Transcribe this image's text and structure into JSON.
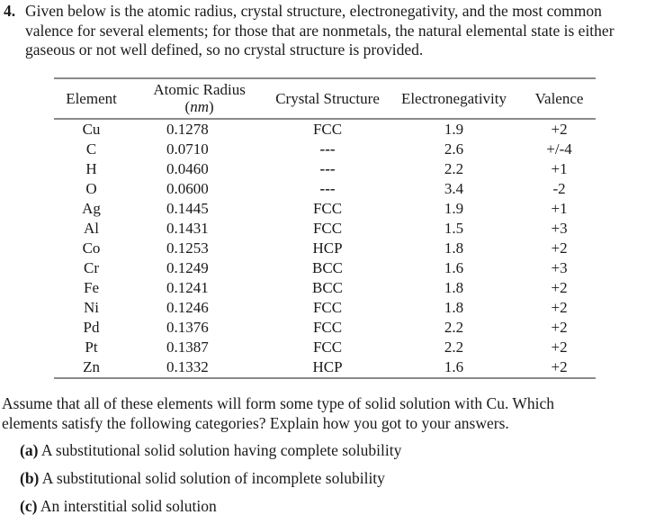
{
  "problem": {
    "number": "4.",
    "intro_lines": [
      "Given below is the atomic radius, crystal structure, electronegativity, and the most common",
      "valence for several elements; for those that are nonmetals, the natural elemental state is either",
      "gaseous or not well defined, so no crystal structure is provided."
    ]
  },
  "table": {
    "headers": {
      "element": "Element",
      "radius_line1": "Atomic Radius",
      "radius_unit": "nm",
      "crystal": "Crystal Structure",
      "electroneg": "Electronegativity",
      "valence": "Valence"
    },
    "rows": [
      {
        "element": "Cu",
        "radius": "0.1278",
        "crystal": "FCC",
        "electroneg": "1.9",
        "valence": "+2"
      },
      {
        "element": "C",
        "radius": "0.0710",
        "crystal": "---",
        "electroneg": "2.6",
        "valence": "+/-4"
      },
      {
        "element": "H",
        "radius": "0.0460",
        "crystal": "---",
        "electroneg": "2.2",
        "valence": "+1"
      },
      {
        "element": "O",
        "radius": "0.0600",
        "crystal": "---",
        "electroneg": "3.4",
        "valence": "-2"
      },
      {
        "element": "Ag",
        "radius": "0.1445",
        "crystal": "FCC",
        "electroneg": "1.9",
        "valence": "+1"
      },
      {
        "element": "Al",
        "radius": "0.1431",
        "crystal": "FCC",
        "electroneg": "1.5",
        "valence": "+3"
      },
      {
        "element": "Co",
        "radius": "0.1253",
        "crystal": "HCP",
        "electroneg": "1.8",
        "valence": "+2"
      },
      {
        "element": "Cr",
        "radius": "0.1249",
        "crystal": "BCC",
        "electroneg": "1.6",
        "valence": "+3"
      },
      {
        "element": "Fe",
        "radius": "0.1241",
        "crystal": "BCC",
        "electroneg": "1.8",
        "valence": "+2"
      },
      {
        "element": "Ni",
        "radius": "0.1246",
        "crystal": "FCC",
        "electroneg": "1.8",
        "valence": "+2"
      },
      {
        "element": "Pd",
        "radius": "0.1376",
        "crystal": "FCC",
        "electroneg": "2.2",
        "valence": "+2"
      },
      {
        "element": "Pt",
        "radius": "0.1387",
        "crystal": "FCC",
        "electroneg": "2.2",
        "valence": "+2"
      },
      {
        "element": "Zn",
        "radius": "0.1332",
        "crystal": "HCP",
        "electroneg": "1.6",
        "valence": "+2"
      }
    ]
  },
  "question": {
    "lines": [
      "Assume that all of these elements will form some type of solid solution with Cu.  Which",
      "elements satisfy the following categories?  Explain how you got to your answers."
    ],
    "parts": [
      {
        "label": "(a)",
        "text": " A substitutional solid solution having complete solubility"
      },
      {
        "label": "(b)",
        "text": " A substitutional solid solution of incomplete solubility"
      },
      {
        "label": "(c)",
        "text": " An interstitial solid solution"
      }
    ]
  }
}
